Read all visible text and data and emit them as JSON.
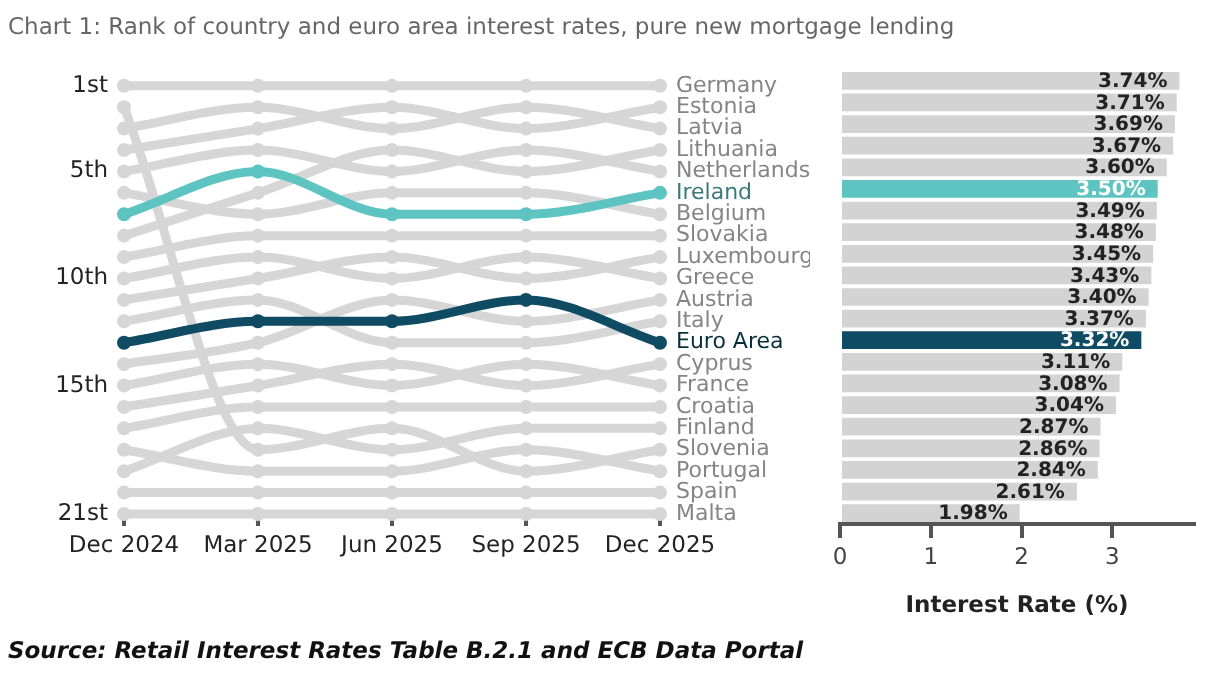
{
  "chart_data": [
    {
      "type": "line",
      "title": "Chart 1: Rank of country and euro area interest rates, pure new mortgage lending",
      "categories": [
        "Dec 2024",
        "Mar 2025",
        "Jun 2025",
        "Sep 2025",
        "Dec 2025"
      ],
      "ylim": [
        21,
        1
      ],
      "yticks": [
        {
          "value": 1,
          "label": "1st"
        },
        {
          "value": 5,
          "label": "5th"
        },
        {
          "value": 10,
          "label": "10th"
        },
        {
          "value": 15,
          "label": "15th"
        },
        {
          "value": 21,
          "label": "21st"
        }
      ],
      "grid": false,
      "legend": false,
      "marker": "circle",
      "line_style": "solid",
      "series": [
        {
          "name": "Germany",
          "color": "#d6d6d6",
          "values": [
            1,
            1,
            1,
            1,
            1
          ]
        },
        {
          "name": "Estonia",
          "color": "#d6d6d6",
          "values": [
            4,
            3,
            2,
            3,
            2
          ]
        },
        {
          "name": "Latvia",
          "color": "#d6d6d6",
          "values": [
            3,
            2,
            3,
            2,
            3
          ]
        },
        {
          "name": "Lithuania",
          "color": "#d6d6d6",
          "values": [
            8,
            6,
            4,
            5,
            4
          ]
        },
        {
          "name": "Netherlands",
          "color": "#d6d6d6",
          "values": [
            5,
            4,
            5,
            4,
            5
          ]
        },
        {
          "name": "Ireland",
          "color": "#5ec4c1",
          "values": [
            7,
            5,
            7,
            7,
            6
          ]
        },
        {
          "name": "Belgium",
          "color": "#d6d6d6",
          "values": [
            6,
            7,
            6,
            6,
            7
          ]
        },
        {
          "name": "Slovakia",
          "color": "#d6d6d6",
          "values": [
            9,
            8,
            8,
            8,
            8
          ]
        },
        {
          "name": "Luxembourg",
          "color": "#d6d6d6",
          "values": [
            11,
            10,
            9,
            10,
            9
          ]
        },
        {
          "name": "Greece",
          "color": "#d6d6d6",
          "values": [
            10,
            9,
            10,
            9,
            10
          ]
        },
        {
          "name": "Austria",
          "color": "#d6d6d6",
          "values": [
            14,
            13,
            11,
            12,
            11
          ]
        },
        {
          "name": "Italy",
          "color": "#d6d6d6",
          "values": [
            12,
            11,
            13,
            13,
            12
          ]
        },
        {
          "name": "Euro Area",
          "color": "#0f4c64",
          "values": [
            13,
            12,
            12,
            11,
            13
          ]
        },
        {
          "name": "Cyprus",
          "color": "#d6d6d6",
          "values": [
            16,
            15,
            14,
            15,
            14
          ]
        },
        {
          "name": "France",
          "color": "#d6d6d6",
          "values": [
            15,
            14,
            15,
            14,
            15
          ]
        },
        {
          "name": "Croatia",
          "color": "#d6d6d6",
          "values": [
            17,
            16,
            16,
            16,
            16
          ]
        },
        {
          "name": "Finland",
          "color": "#d6d6d6",
          "values": [
            19,
            17,
            18,
            17,
            17
          ]
        },
        {
          "name": "Slovenia",
          "color": "#d6d6d6",
          "values": [
            2,
            18,
            17,
            19,
            18
          ]
        },
        {
          "name": "Portugal",
          "color": "#d6d6d6",
          "values": [
            18,
            19,
            19,
            18,
            19
          ]
        },
        {
          "name": "Spain",
          "color": "#d6d6d6",
          "values": [
            20,
            20,
            20,
            20,
            20
          ]
        },
        {
          "name": "Malta",
          "color": "#d6d6d6",
          "values": [
            21,
            21,
            21,
            21,
            21
          ]
        }
      ]
    },
    {
      "type": "bar",
      "orientation": "horizontal",
      "xlabel": "Interest Rate (%)",
      "tick_labels": "x",
      "grid": false,
      "legend": false,
      "categories": [
        null,
        null,
        null,
        null,
        null,
        null,
        null,
        null,
        null,
        null,
        null,
        null,
        null,
        null,
        null,
        null,
        null,
        null,
        null,
        null,
        null
      ],
      "values": [
        3.74,
        3.71,
        3.69,
        3.67,
        3.6,
        3.5,
        3.49,
        3.48,
        3.45,
        3.43,
        3.4,
        3.37,
        3.32,
        3.11,
        3.08,
        3.04,
        2.87,
        2.86,
        2.84,
        2.61,
        1.98
      ],
      "value_labels": [
        "3.74%",
        "3.71%",
        "3.69%",
        "3.67%",
        "3.60%",
        "3.50%",
        "3.49%",
        "3.48%",
        "3.45%",
        "3.43%",
        "3.40%",
        "3.37%",
        "3.32%",
        "3.11%",
        "3.08%",
        "3.04%",
        "2.87%",
        "2.86%",
        "2.84%",
        "2.61%",
        "1.98%"
      ],
      "colors": [
        "#d3d3d3",
        "#d3d3d3",
        "#d3d3d3",
        "#d3d3d3",
        "#d3d3d3",
        "#5ec4c1",
        "#d3d3d3",
        "#d3d3d3",
        "#d3d3d3",
        "#d3d3d3",
        "#d3d3d3",
        "#d3d3d3",
        "#0f4c64",
        "#d3d3d3",
        "#d3d3d3",
        "#d3d3d3",
        "#d3d3d3",
        "#d3d3d3",
        "#d3d3d3",
        "#d3d3d3",
        "#d3d3d3"
      ],
      "xlim": [
        0,
        3.9
      ],
      "xticks": [
        0,
        1,
        2,
        3
      ],
      "annotations": [
        "Source: Retail Interest Rates Table B.2.1 and ECB Data Portal"
      ]
    }
  ]
}
